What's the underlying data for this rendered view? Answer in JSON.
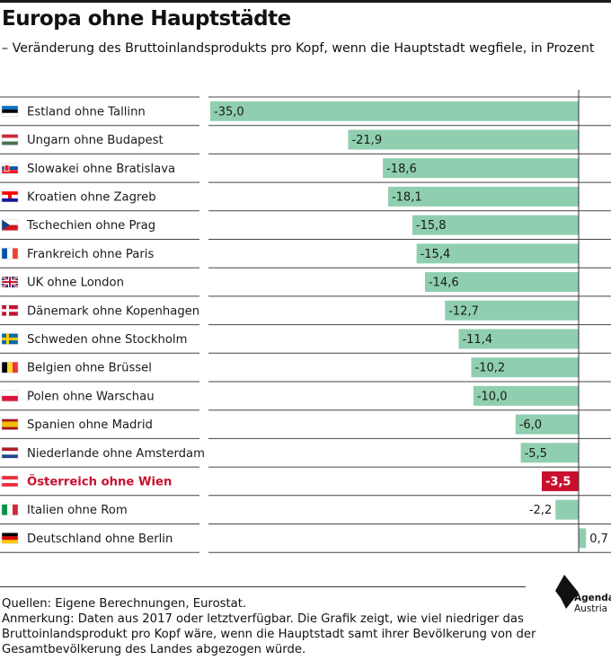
{
  "header": {
    "title": "Europa ohne Hauptstädte",
    "subtitle": "– Veränderung des Bruttoinlandsprodukts pro Kopf, wenn die Hauptstadt wegfiele, in Prozent"
  },
  "chart_data": {
    "type": "bar",
    "orientation": "horizontal",
    "categories": [
      "Estland ohne Tallinn",
      "Ungarn ohne Budapest",
      "Slowakei ohne Bratislava",
      "Kroatien ohne Zagreb",
      "Tschechien ohne Prag",
      "Frankreich ohne Paris",
      "UK ohne London",
      "Dänemark ohne Kopenhagen",
      "Schweden ohne Stockholm",
      "Belgien ohne Brüssel",
      "Polen ohne Warschau",
      "Spanien ohne Madrid",
      "Niederlande ohne Amsterdam",
      "Österreich ohne Wien",
      "Italien ohne Rom",
      "Deutschland ohne Berlin"
    ],
    "values": [
      -35.0,
      -21.9,
      -18.6,
      -18.1,
      -15.8,
      -15.4,
      -14.6,
      -12.7,
      -11.4,
      -10.2,
      -10.0,
      -6.0,
      -5.5,
      -3.5,
      -2.2,
      0.7
    ],
    "value_labels": [
      "-35,0",
      "-21,9",
      "-18,6",
      "-18,1",
      "-15,8",
      "-15,4",
      "-14,6",
      "-12,7",
      "-11,4",
      "-10,2",
      "-10,0",
      "-6,0",
      "-5,5",
      "-3,5",
      "-2,2",
      "0,7"
    ],
    "flags": [
      "estonia-flag-icon",
      "hungary-flag-icon",
      "slovakia-flag-icon",
      "croatia-flag-icon",
      "czechia-flag-icon",
      "france-flag-icon",
      "uk-flag-icon",
      "denmark-flag-icon",
      "sweden-flag-icon",
      "belgium-flag-icon",
      "poland-flag-icon",
      "spain-flag-icon",
      "netherlands-flag-icon",
      "austria-flag-icon",
      "italy-flag-icon",
      "germany-flag-icon"
    ],
    "highlight": "Österreich ohne Wien",
    "xlim": [
      -35.0,
      0.7
    ],
    "colors": {
      "bar": "#8fcfb0",
      "highlight_bar": "#c8102e",
      "highlight_text": "#c8102e",
      "text": "#1a1a1a"
    },
    "grid": false
  },
  "footer": {
    "sources": "Quellen: Eigene Berechnungen, Eurostat.",
    "note": "Anmerkung: Daten aus 2017 oder letztverfügbar. Die Grafik zeigt, wie viel niedriger das Bruttoinlandsprodukt pro Kopf wäre, wenn die Hauptstadt samt ihrer Bevölkerung von der Gesamtbevölkerung des Landes abgezogen würde."
  },
  "logo": {
    "line1": "Agenda",
    "line2": "Austria"
  }
}
